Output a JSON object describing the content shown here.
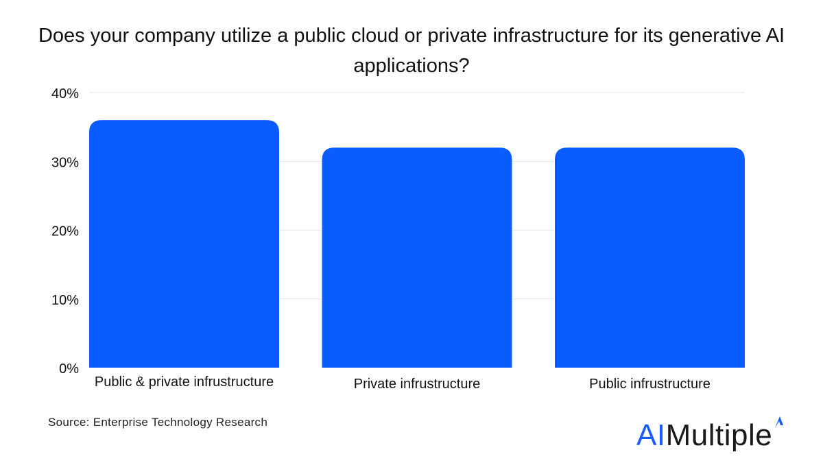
{
  "chart_data": {
    "type": "bar",
    "title": "Does your company utilize a public cloud or private infrastructure for its generative AI applications?",
    "categories": [
      "Public & private infrustructure",
      "Private infrustructure",
      "Public infrustructure"
    ],
    "values": [
      36,
      32,
      32
    ],
    "ylim": [
      0,
      40
    ],
    "yticks": [
      "0%",
      "10%",
      "20%",
      "30%",
      "40%"
    ],
    "ytick_values": [
      0,
      10,
      20,
      30,
      40
    ],
    "grid": true,
    "colors": {
      "bar": "#0a5cff",
      "grid": "#e3e3e3"
    }
  },
  "source": "Source: Enterprise Technology Research",
  "logo": {
    "ai": "AI",
    "rest": "Multiple",
    "accent": "#1a5cff"
  }
}
